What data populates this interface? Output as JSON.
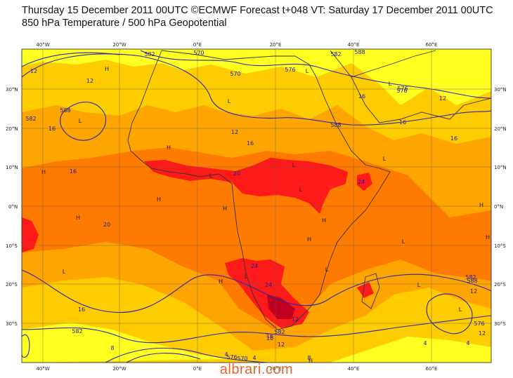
{
  "header": {
    "line1": "Thursday 15 December 2011 00UTC ©ECMWF Forecast t+048 VT: Saturday 17 December 2011 00UTC",
    "line2": "850 hPa Temperature / 500 hPa Geopotential"
  },
  "axes": {
    "lon_labels": [
      "40°W",
      "20°W",
      "0°E",
      "20°E",
      "40°E",
      "60°E"
    ],
    "lat_labels_left": [
      "30°N",
      "20°N",
      "10°N",
      "0°N",
      "10°S",
      "20°S",
      "30°S"
    ],
    "lat_labels_right": [
      "30°N",
      "20°N",
      "10°N",
      "0°N",
      "10°S",
      "20°S",
      "30°S"
    ]
  },
  "contour_labels": [
    "12",
    "12",
    "16",
    "582",
    "588",
    "582",
    "570",
    "570",
    "576",
    "582",
    "588",
    "12",
    "576",
    "588",
    "16",
    "16",
    "16",
    "20",
    "12",
    "16",
    "24",
    "20",
    "24",
    "24",
    "582",
    "16",
    "12",
    "582",
    "16",
    "12",
    "588",
    "8",
    "4",
    "4",
    "8",
    "4",
    "4",
    "576",
    "570",
    "576",
    "12",
    "16",
    "12",
    "16",
    "576",
    "582"
  ],
  "pressure_centers": [
    "H",
    "H",
    "H",
    "H",
    "H",
    "H",
    "H",
    "H",
    "H",
    "H",
    "H",
    "H",
    "L",
    "L",
    "L",
    "L",
    "L",
    "L",
    "L",
    "L",
    "L",
    "L",
    "L",
    "L",
    "L",
    "L"
  ],
  "palette": {
    "yellow": "#ffff20",
    "gold": "#ffcc00",
    "light_orange": "#ffa500",
    "orange": "#ff7b00",
    "red": "#ff1a1a",
    "dark_red": "#c00020",
    "contour": "#2a2aa8",
    "coast": "#333333"
  },
  "watermark": "albrari.com"
}
